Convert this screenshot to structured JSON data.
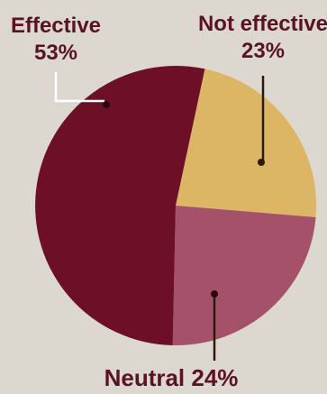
{
  "chart_data": {
    "type": "pie",
    "slices": [
      {
        "label": "Effective",
        "value": 53,
        "display": "53%",
        "color": "#6d0f27"
      },
      {
        "label": "Not effective",
        "value": 23,
        "display": "23%",
        "color": "#dcb565"
      },
      {
        "label": "Neutral",
        "value": 24,
        "display": "24%",
        "color": "#a45169"
      }
    ],
    "label_texts": {
      "effective_name": "Effective",
      "effective_value": "53%",
      "not_effective_name": "Not effective",
      "not_effective_value": "23%",
      "neutral_full": "Neutral 24%"
    }
  }
}
